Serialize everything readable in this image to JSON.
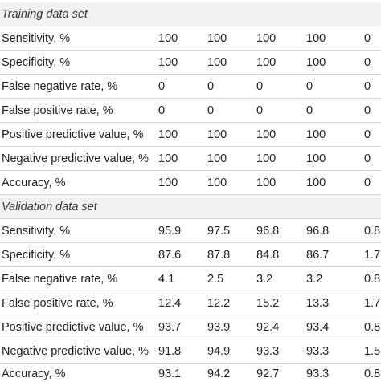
{
  "sections": [
    {
      "title": "Training data set",
      "rows": [
        {
          "label": "Sensitivity, %",
          "values": [
            "100",
            "100",
            "100",
            "100",
            "0"
          ]
        },
        {
          "label": "Specificity, %",
          "values": [
            "100",
            "100",
            "100",
            "100",
            "0"
          ]
        },
        {
          "label": "False negative rate, %",
          "values": [
            "0",
            "0",
            "0",
            "0",
            "0"
          ]
        },
        {
          "label": "False positive rate, %",
          "values": [
            "0",
            "0",
            "0",
            "0",
            "0"
          ]
        },
        {
          "label": "Positive predictive value, %",
          "values": [
            "100",
            "100",
            "100",
            "100",
            "0"
          ]
        },
        {
          "label": "Negative predictive value, %",
          "values": [
            "100",
            "100",
            "100",
            "100",
            "0"
          ]
        },
        {
          "label": "Accuracy, %",
          "values": [
            "100",
            "100",
            "100",
            "100",
            "0"
          ]
        }
      ]
    },
    {
      "title": "Validation data set",
      "rows": [
        {
          "label": "Sensitivity, %",
          "values": [
            "95.9",
            "97.5",
            "96.8",
            "96.8",
            "0.8"
          ]
        },
        {
          "label": "Specificity, %",
          "values": [
            "87.6",
            "87.8",
            "84.8",
            "86.7",
            "1.7"
          ]
        },
        {
          "label": "False negative rate, %",
          "values": [
            "4.1",
            "2.5",
            "3.2",
            "3.2",
            "0.8"
          ]
        },
        {
          "label": "False positive rate, %",
          "values": [
            "12.4",
            "12.2",
            "15.2",
            "13.3",
            "1.7"
          ]
        },
        {
          "label": "Positive predictive value, %",
          "values": [
            "93.7",
            "93.9",
            "92.4",
            "93.4",
            "0.8"
          ]
        },
        {
          "label": "Negative predictive value, %",
          "values": [
            "91.8",
            "94.9",
            "93.3",
            "93.3",
            "1.5"
          ]
        },
        {
          "label": "Accuracy, %",
          "values": [
            "93.1",
            "94.2",
            "92.7",
            "93.3",
            "0.8"
          ]
        }
      ]
    }
  ]
}
